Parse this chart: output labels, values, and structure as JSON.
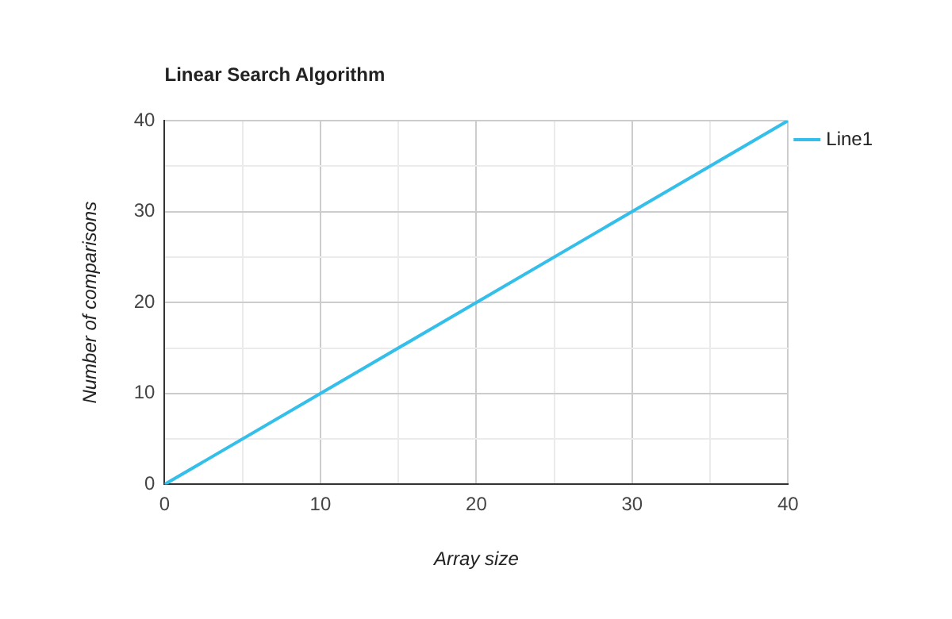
{
  "chart_data": {
    "type": "line",
    "title": "Linear Search Algorithm",
    "xlabel": "Array size",
    "ylabel": "Number of comparisons",
    "x": [
      0,
      40
    ],
    "series": [
      {
        "name": "Line1",
        "color": "#33bfea",
        "values": [
          0,
          40
        ]
      }
    ],
    "xlim": [
      0,
      40
    ],
    "ylim": [
      0,
      40
    ],
    "xticks": [
      0,
      {
        "value": 5,
        "label": null
      },
      10,
      {
        "value": 15,
        "label": null
      },
      20,
      {
        "value": 25,
        "label": null
      },
      30,
      {
        "value": 35,
        "label": null
      },
      40
    ],
    "yticks": [
      0,
      {
        "value": 5,
        "label": null
      },
      10,
      {
        "value": 15,
        "label": null
      },
      20,
      {
        "value": 25,
        "label": null
      },
      30,
      {
        "value": 35,
        "label": null
      },
      40
    ],
    "grid": true,
    "legend": "right",
    "marker": "none",
    "line_style": "solid"
  }
}
